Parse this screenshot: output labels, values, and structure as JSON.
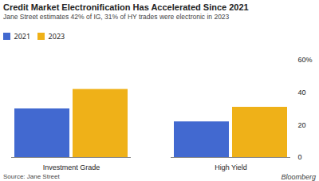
{
  "chart_data": {
    "type": "bar",
    "title": "Credit Market Electronification Has Accelerated Since 2021",
    "subtitle": "Jane Street estimates 42% of IG, 31% of HY trades were electronic in 2023",
    "annotations": [
      "Source: Jane Street",
      "Bloomberg"
    ],
    "categories": [
      "Investment Grade",
      "High Yield"
    ],
    "series": [
      {
        "name": "2021",
        "values": [
          30,
          22
        ]
      },
      {
        "name": "2023",
        "values": [
          42,
          31
        ]
      }
    ],
    "ylim": [
      0,
      60
    ],
    "yticks": [
      0,
      20,
      40,
      {
        "value": 60,
        "label": "60%"
      }
    ],
    "grid": false,
    "legend": "upper left"
  }
}
